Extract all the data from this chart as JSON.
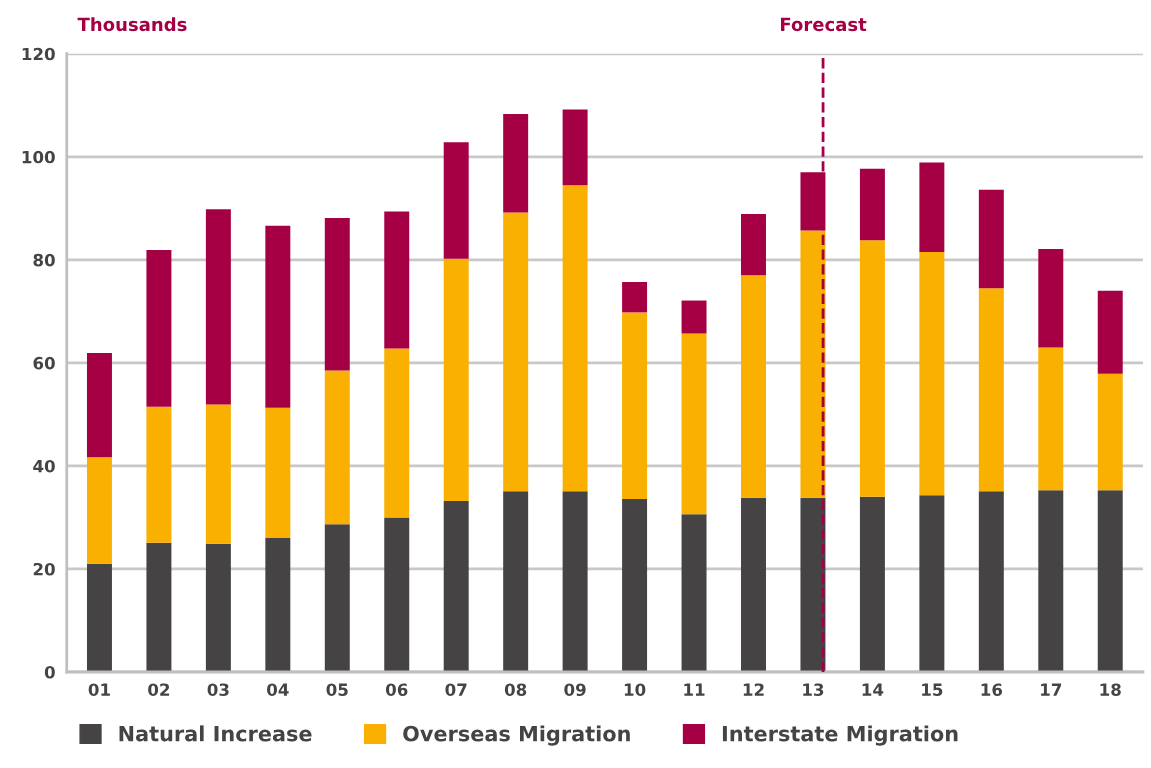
{
  "chart_data": {
    "type": "bar",
    "stacked": true,
    "ylabel": "Thousands",
    "categories": [
      "01",
      "02",
      "03",
      "04",
      "05",
      "06",
      "07",
      "08",
      "09",
      "10",
      "11",
      "12",
      "13",
      "14",
      "15",
      "16",
      "17",
      "18"
    ],
    "series": [
      {
        "name": "Natural Increase",
        "color": "#454344",
        "values": [
          21,
          25.1,
          24.9,
          26,
          28.7,
          30,
          33.2,
          35.1,
          35.1,
          33.6,
          30.6,
          33.8,
          33.8,
          34,
          34.3,
          35.1,
          35.3,
          35.3
        ]
      },
      {
        "name": "Overseas Migration",
        "color": "#f9b000",
        "values": [
          20.7,
          26.4,
          27,
          25.3,
          29.8,
          32.8,
          47,
          54.1,
          59.4,
          36.2,
          35.1,
          43.2,
          51.9,
          49.8,
          47.2,
          39.4,
          27.7,
          22.6
        ]
      },
      {
        "name": "Interstate Migration",
        "color": "#a50044",
        "values": [
          20.2,
          30.4,
          37.9,
          35.3,
          29.6,
          26.6,
          22.6,
          19.1,
          14.7,
          5.9,
          6.4,
          11.9,
          11.3,
          13.9,
          17.4,
          19.1,
          19.1,
          16.1
        ]
      }
    ],
    "ylim": [
      0,
      120
    ],
    "yticks": [
      0,
      20,
      40,
      60,
      80,
      100,
      120
    ],
    "grid": "y",
    "legend": "bottom",
    "ref_lines": [
      {
        "axis": "x",
        "value": "13",
        "label": "Forecast",
        "color": "#a50044",
        "line_style": "dashed"
      }
    ]
  }
}
